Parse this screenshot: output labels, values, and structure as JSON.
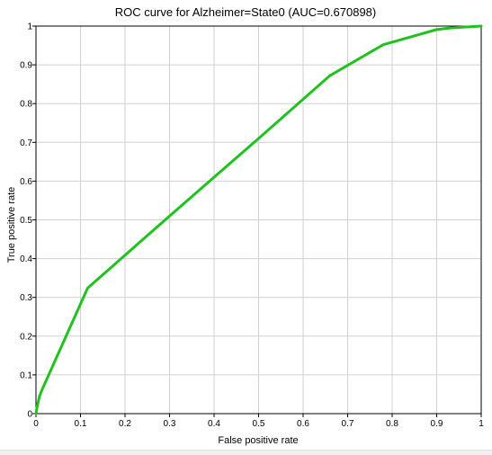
{
  "chart_data": {
    "type": "line",
    "title": "ROC curve for Alzheimer=State0 (AUC=0.670898)",
    "xlabel": "False positive rate",
    "ylabel": "True positive rate",
    "xlim": [
      0,
      1
    ],
    "ylim": [
      0,
      1
    ],
    "x_ticks": [
      "0",
      "0.1",
      "0.2",
      "0.3",
      "0.4",
      "0.5",
      "0.6",
      "0.7",
      "0.8",
      "0.9",
      "1"
    ],
    "y_ticks": [
      "0",
      "0.1",
      "0.2",
      "0.3",
      "0.4",
      "0.5",
      "0.6",
      "0.7",
      "0.8",
      "0.9",
      "1"
    ],
    "grid": true,
    "series": [
      {
        "color": "#22c11f",
        "points": [
          [
            0,
            0
          ],
          [
            0.003,
            0.02
          ],
          [
            0.008,
            0.045
          ],
          [
            0.013,
            0.06
          ],
          [
            0.116,
            0.324
          ],
          [
            0.3,
            0.51
          ],
          [
            0.5,
            0.71
          ],
          [
            0.66,
            0.872
          ],
          [
            0.78,
            0.952
          ],
          [
            0.9,
            0.991
          ],
          [
            0.93,
            0.995
          ],
          [
            0.97,
            0.998
          ],
          [
            1,
            1
          ]
        ]
      }
    ]
  },
  "colors": {
    "axis": "#000000",
    "grid": "#d0d0d0",
    "text": "#000000"
  }
}
